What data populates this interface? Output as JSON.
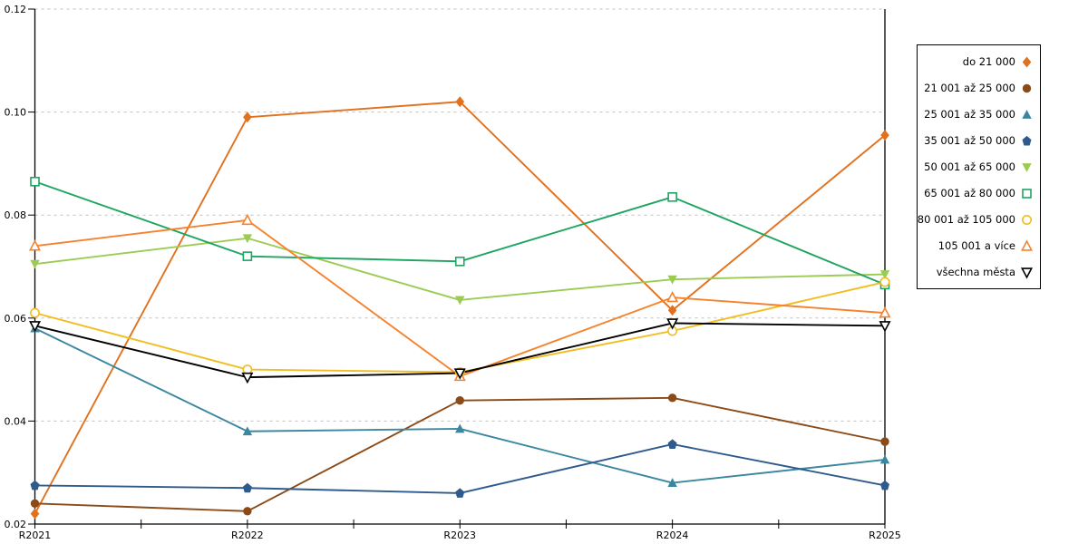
{
  "chart_data": {
    "type": "line",
    "title": "",
    "xlabel": "",
    "ylabel": "",
    "x_categories": [
      "R2021",
      "R2022",
      "R2023",
      "R2024",
      "R2025"
    ],
    "y_tick_labels": [
      "0.02",
      "0.04",
      "0.06",
      "0.08",
      "0.10",
      "0.12"
    ],
    "ylim": [
      0.02,
      0.12
    ],
    "grid": "horizontal-dashed",
    "grid_color": "#bfbfbf",
    "axis_color": "#000000",
    "legend_position": "right-outside-boxed",
    "series": [
      {
        "name": "do 21 000",
        "marker": "diamond-filled",
        "color": "#e2711d",
        "values": [
          0.022,
          0.099,
          0.102,
          0.0615,
          0.0955
        ]
      },
      {
        "name": "21 001 až 25 000",
        "marker": "circle-filled",
        "color": "#8b4a16",
        "values": [
          0.024,
          0.0225,
          0.044,
          0.0445,
          0.036
        ]
      },
      {
        "name": "25 001 až 35 000",
        "marker": "triangle-up-filled",
        "color": "#3b87a0",
        "values": [
          0.058,
          0.038,
          0.0385,
          0.028,
          0.0325
        ]
      },
      {
        "name": "35 001 až 50 000",
        "marker": "pentagon-filled",
        "color": "#2f5b8c",
        "values": [
          0.0275,
          0.027,
          0.026,
          0.0355,
          0.0275
        ]
      },
      {
        "name": "50 001 až 65 000",
        "marker": "triangle-down-filled",
        "color": "#9ccb53",
        "values": [
          0.0705,
          0.0755,
          0.0635,
          0.0675,
          0.0685
        ]
      },
      {
        "name": "65 001 až 80 000",
        "marker": "square-open",
        "color": "#1fa562",
        "values": [
          0.0865,
          0.072,
          0.071,
          0.0835,
          0.0665
        ]
      },
      {
        "name": "80 001 až 105 000",
        "marker": "circle-open",
        "color": "#f1bd20",
        "values": [
          0.061,
          0.05,
          0.0495,
          0.0575,
          0.067
        ]
      },
      {
        "name": "105 001 a více",
        "marker": "triangle-up-open",
        "color": "#f5832d",
        "values": [
          0.074,
          0.079,
          0.0487,
          0.064,
          0.061
        ]
      },
      {
        "name": "všechna města",
        "marker": "triangle-down-open",
        "color": "#000000",
        "values": [
          0.0585,
          0.0485,
          0.0493,
          0.059,
          0.0585
        ]
      }
    ]
  }
}
